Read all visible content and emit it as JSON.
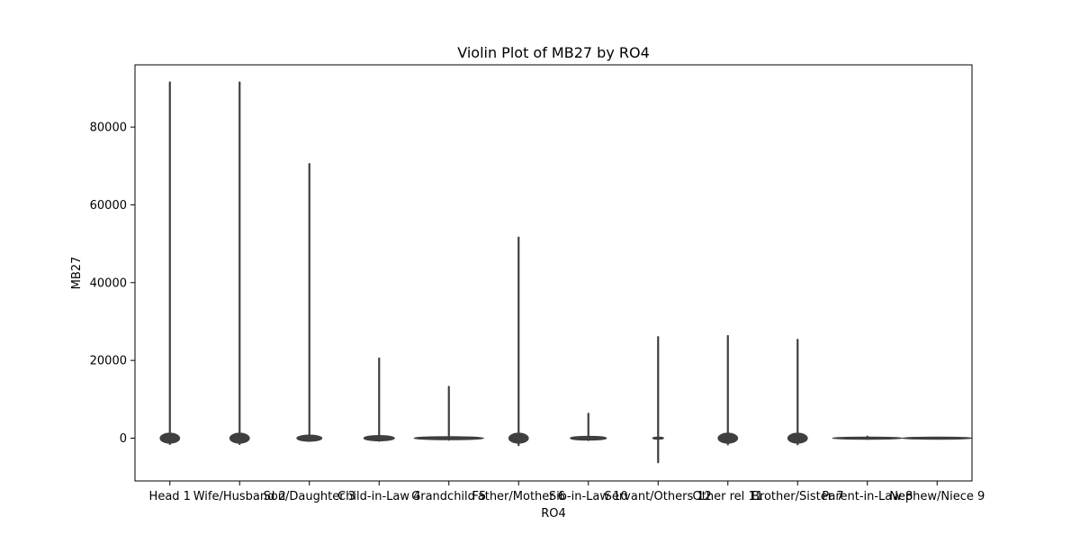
{
  "chart_data": {
    "type": "violin",
    "title": "Violin Plot of MB27 by RO4",
    "xlabel": "RO4",
    "ylabel": "MB27",
    "ylim": [
      -11000,
      96000
    ],
    "yticks": [
      0,
      20000,
      40000,
      60000,
      80000
    ],
    "ytick_labels": [
      "0",
      "20000",
      "40000",
      "60000",
      "80000"
    ],
    "grid": false,
    "legend": "none",
    "colors": {
      "violin_fill": "#3f3f3f",
      "violin_stroke": "#3f3f3f",
      "axes": "#000000",
      "background": "#ffffff"
    },
    "categories": [
      "Head 1",
      "Wife/Husband 2",
      "Son/Daughter 3",
      "Child-in-Law 4",
      "Grandchild 5",
      "Father/Mother 6",
      "Sib-in-Law 10",
      "Servant/Others 12",
      "Other rel 11",
      "Brother/Sister 7",
      "Parent-in-Law 8",
      "Nephew/Niece 9"
    ],
    "series": [
      {
        "category": "Head 1",
        "min": -1500,
        "max": 91500,
        "bulb_center": 0,
        "bulb_halfwidth": 1300,
        "bulb_width": 0.35
      },
      {
        "category": "Wife/Husband 2",
        "min": -1500,
        "max": 91500,
        "bulb_center": 0,
        "bulb_halfwidth": 1300,
        "bulb_width": 0.35
      },
      {
        "category": "Son/Daughter 3",
        "min": -700,
        "max": 70500,
        "bulb_center": 0,
        "bulb_halfwidth": 800,
        "bulb_width": 0.45
      },
      {
        "category": "Child-in-Law 4",
        "min": -700,
        "max": 20500,
        "bulb_center": 0,
        "bulb_halfwidth": 700,
        "bulb_width": 0.55
      },
      {
        "category": "Grandchild 5",
        "min": -400,
        "max": 13200,
        "bulb_center": 0,
        "bulb_halfwidth": 400,
        "bulb_width": 1.3
      },
      {
        "category": "Father/Mother 6",
        "min": -1800,
        "max": 51600,
        "bulb_center": 0,
        "bulb_halfwidth": 1300,
        "bulb_width": 0.35
      },
      {
        "category": "Sib-in-Law 10",
        "min": -500,
        "max": 6300,
        "bulb_center": 0,
        "bulb_halfwidth": 500,
        "bulb_width": 0.65
      },
      {
        "category": "Servant/Others 12",
        "min": -6200,
        "max": 26000,
        "bulb_center": 0,
        "bulb_halfwidth": 0,
        "bulb_width": 0.1
      },
      {
        "category": "Other rel 11",
        "min": -1600,
        "max": 26300,
        "bulb_center": 0,
        "bulb_halfwidth": 1300,
        "bulb_width": 0.35
      },
      {
        "category": "Brother/Sister 7",
        "min": -1600,
        "max": 25300,
        "bulb_center": 0,
        "bulb_halfwidth": 1300,
        "bulb_width": 0.35
      },
      {
        "category": "Parent-in-Law 8",
        "min": -200,
        "max": 400,
        "bulb_center": 0,
        "bulb_halfwidth": 150,
        "bulb_width": 5.6
      },
      {
        "category": "Nephew/Niece 9",
        "min": 0,
        "max": 0,
        "bulb_center": 0,
        "bulb_halfwidth": 10,
        "bulb_width": 5.6
      }
    ]
  }
}
